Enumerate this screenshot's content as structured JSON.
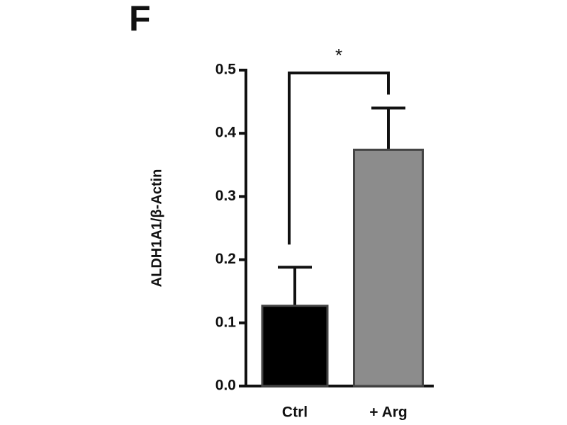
{
  "chart_data": {
    "type": "bar",
    "panel_label": "F",
    "ylabel": "ALDH1A1/β-Actin",
    "categories": [
      "Ctrl",
      "+ Arg"
    ],
    "values": [
      0.127,
      0.374
    ],
    "errors": [
      0.061,
      0.066
    ],
    "colors": [
      "#000000",
      "#8c8c8c"
    ],
    "ylim": [
      0,
      0.5
    ],
    "yticks": [
      {
        "value": 0,
        "label": "0.0"
      },
      0.1,
      0.2,
      0.3,
      0.4,
      0.5
    ],
    "annotation": "*"
  }
}
